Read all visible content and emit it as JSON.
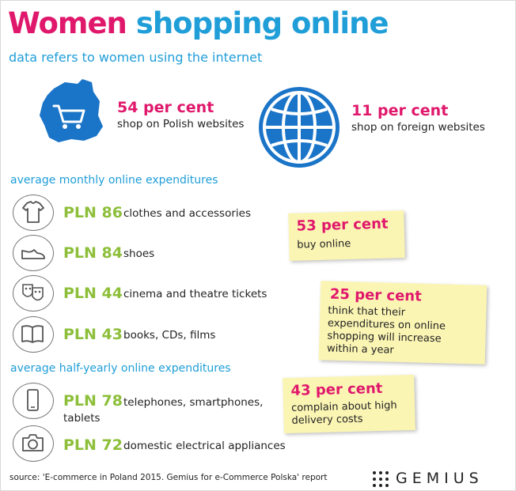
{
  "title": {
    "part1": "Women",
    "part2": "shopping online"
  },
  "subtitle": "data refers to women using the internet",
  "top_stats": [
    {
      "big": "54 per cent",
      "small": "shop on Polish websites",
      "icon": "poland-map-cart-icon"
    },
    {
      "big": "11 per cent",
      "small": "shop on foreign websites",
      "icon": "globe-icon"
    }
  ],
  "monthly": {
    "heading": "average monthly online expenditures",
    "items": [
      {
        "amount": "PLN 86",
        "desc": "clothes and accessories",
        "icon": "tshirt-icon"
      },
      {
        "amount": "PLN 84",
        "desc": "shoes",
        "icon": "shoe-icon"
      },
      {
        "amount": "PLN 44",
        "desc": "cinema and theatre tickets",
        "icon": "theatre-masks-icon"
      },
      {
        "amount": "PLN 43",
        "desc": "books, CDs, films",
        "icon": "book-icon"
      }
    ]
  },
  "halfyearly": {
    "heading": "average half-yearly online expenditures",
    "items": [
      {
        "amount": "PLN 78",
        "desc_line1": "telephones, smartphones,",
        "desc_line2": "tablets",
        "icon": "smartphone-icon"
      },
      {
        "amount": "PLN 72",
        "desc": "domestic electrical appliances",
        "icon": "camera-icon"
      }
    ]
  },
  "notes": [
    {
      "big": "53 per cent",
      "lines": [
        "buy online"
      ]
    },
    {
      "big": "25 per cent",
      "lines": [
        "think that their",
        "expenditures on online",
        "shopping will increase",
        "within a year"
      ]
    },
    {
      "big": "43 per cent",
      "lines": [
        "complain about high",
        "delivery costs"
      ]
    }
  ],
  "source": "source: 'E-commerce in Poland 2015. Gemius for e-Commerce Polska' report",
  "logo": "GEMIUS",
  "colors": {
    "pink": "#e0186c",
    "blue": "#1f9ed8",
    "green": "#8dbf3a",
    "note": "#fbf5b4"
  }
}
